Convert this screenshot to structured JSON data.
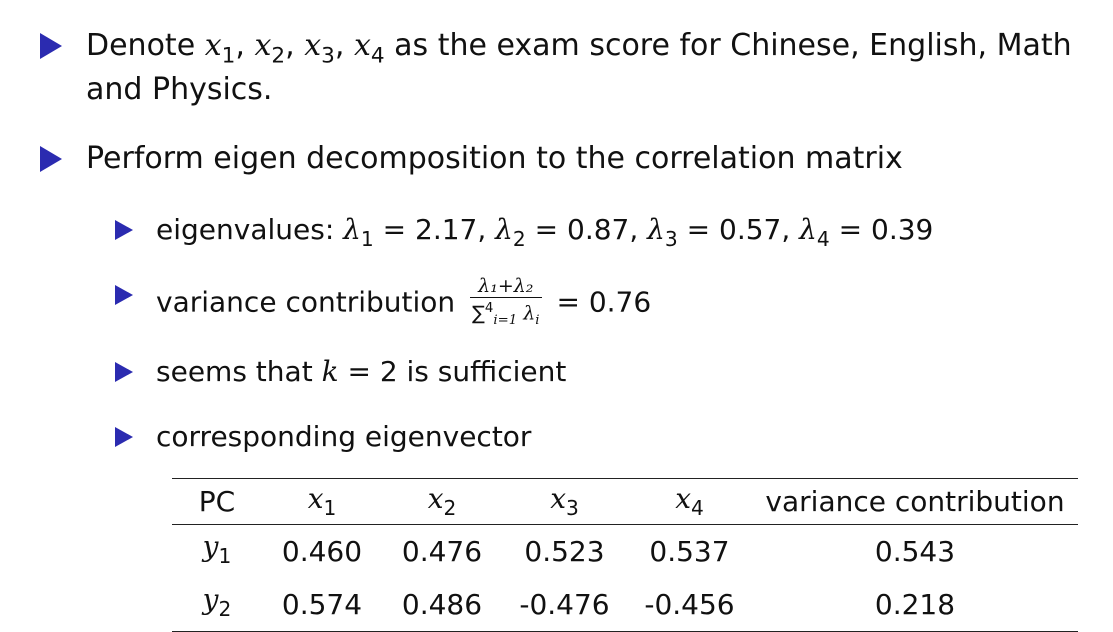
{
  "bullet1": {
    "lead": "Denote",
    "v1": "x",
    "s1": "1",
    "v2": "x",
    "s2": "2",
    "v3": "x",
    "s3": "3",
    "v4": "x",
    "s4": "4",
    "rest1": "as the exam score for Chinese, English, Math",
    "rest2": "and Physics."
  },
  "bullet2": {
    "text": "Perform eigen decomposition to the correlation matrix"
  },
  "sub1": {
    "lead": "eigenvalues:",
    "lam": "λ",
    "s1": "1",
    "val1": "= 2.17,",
    "s2": "2",
    "val2": "= 0.87,",
    "s3": "3",
    "val3": "= 0.57,",
    "s4": "4",
    "val4": "= 0.39"
  },
  "sub2": {
    "lead": "variance contribution",
    "num": "λ₁+λ₂",
    "den_sum": "∑",
    "den_upper": "4",
    "den_lower": "i=1",
    "den_lam": "λ",
    "den_i": "i",
    "value": "= 0.76"
  },
  "sub3": {
    "lead": "seems that",
    "var": "k",
    "rest": "= 2 is sufficient"
  },
  "sub4": {
    "text": "corresponding eigenvector"
  },
  "table": {
    "headers": [
      "PC",
      "x",
      "x",
      "x",
      "x",
      "variance contribution"
    ],
    "header_subs": [
      "",
      "1",
      "2",
      "3",
      "4",
      ""
    ],
    "rows": [
      {
        "pc": "y",
        "pc_sub": "1",
        "cells": [
          "0.460",
          "0.476",
          "0.523",
          "0.537",
          "0.543"
        ]
      },
      {
        "pc": "y",
        "pc_sub": "2",
        "cells": [
          "0.574",
          "0.486",
          "-0.476",
          "-0.456",
          "0.218"
        ]
      }
    ]
  },
  "colors": {
    "bullet": "#2b2bb0",
    "text": "#111111"
  }
}
